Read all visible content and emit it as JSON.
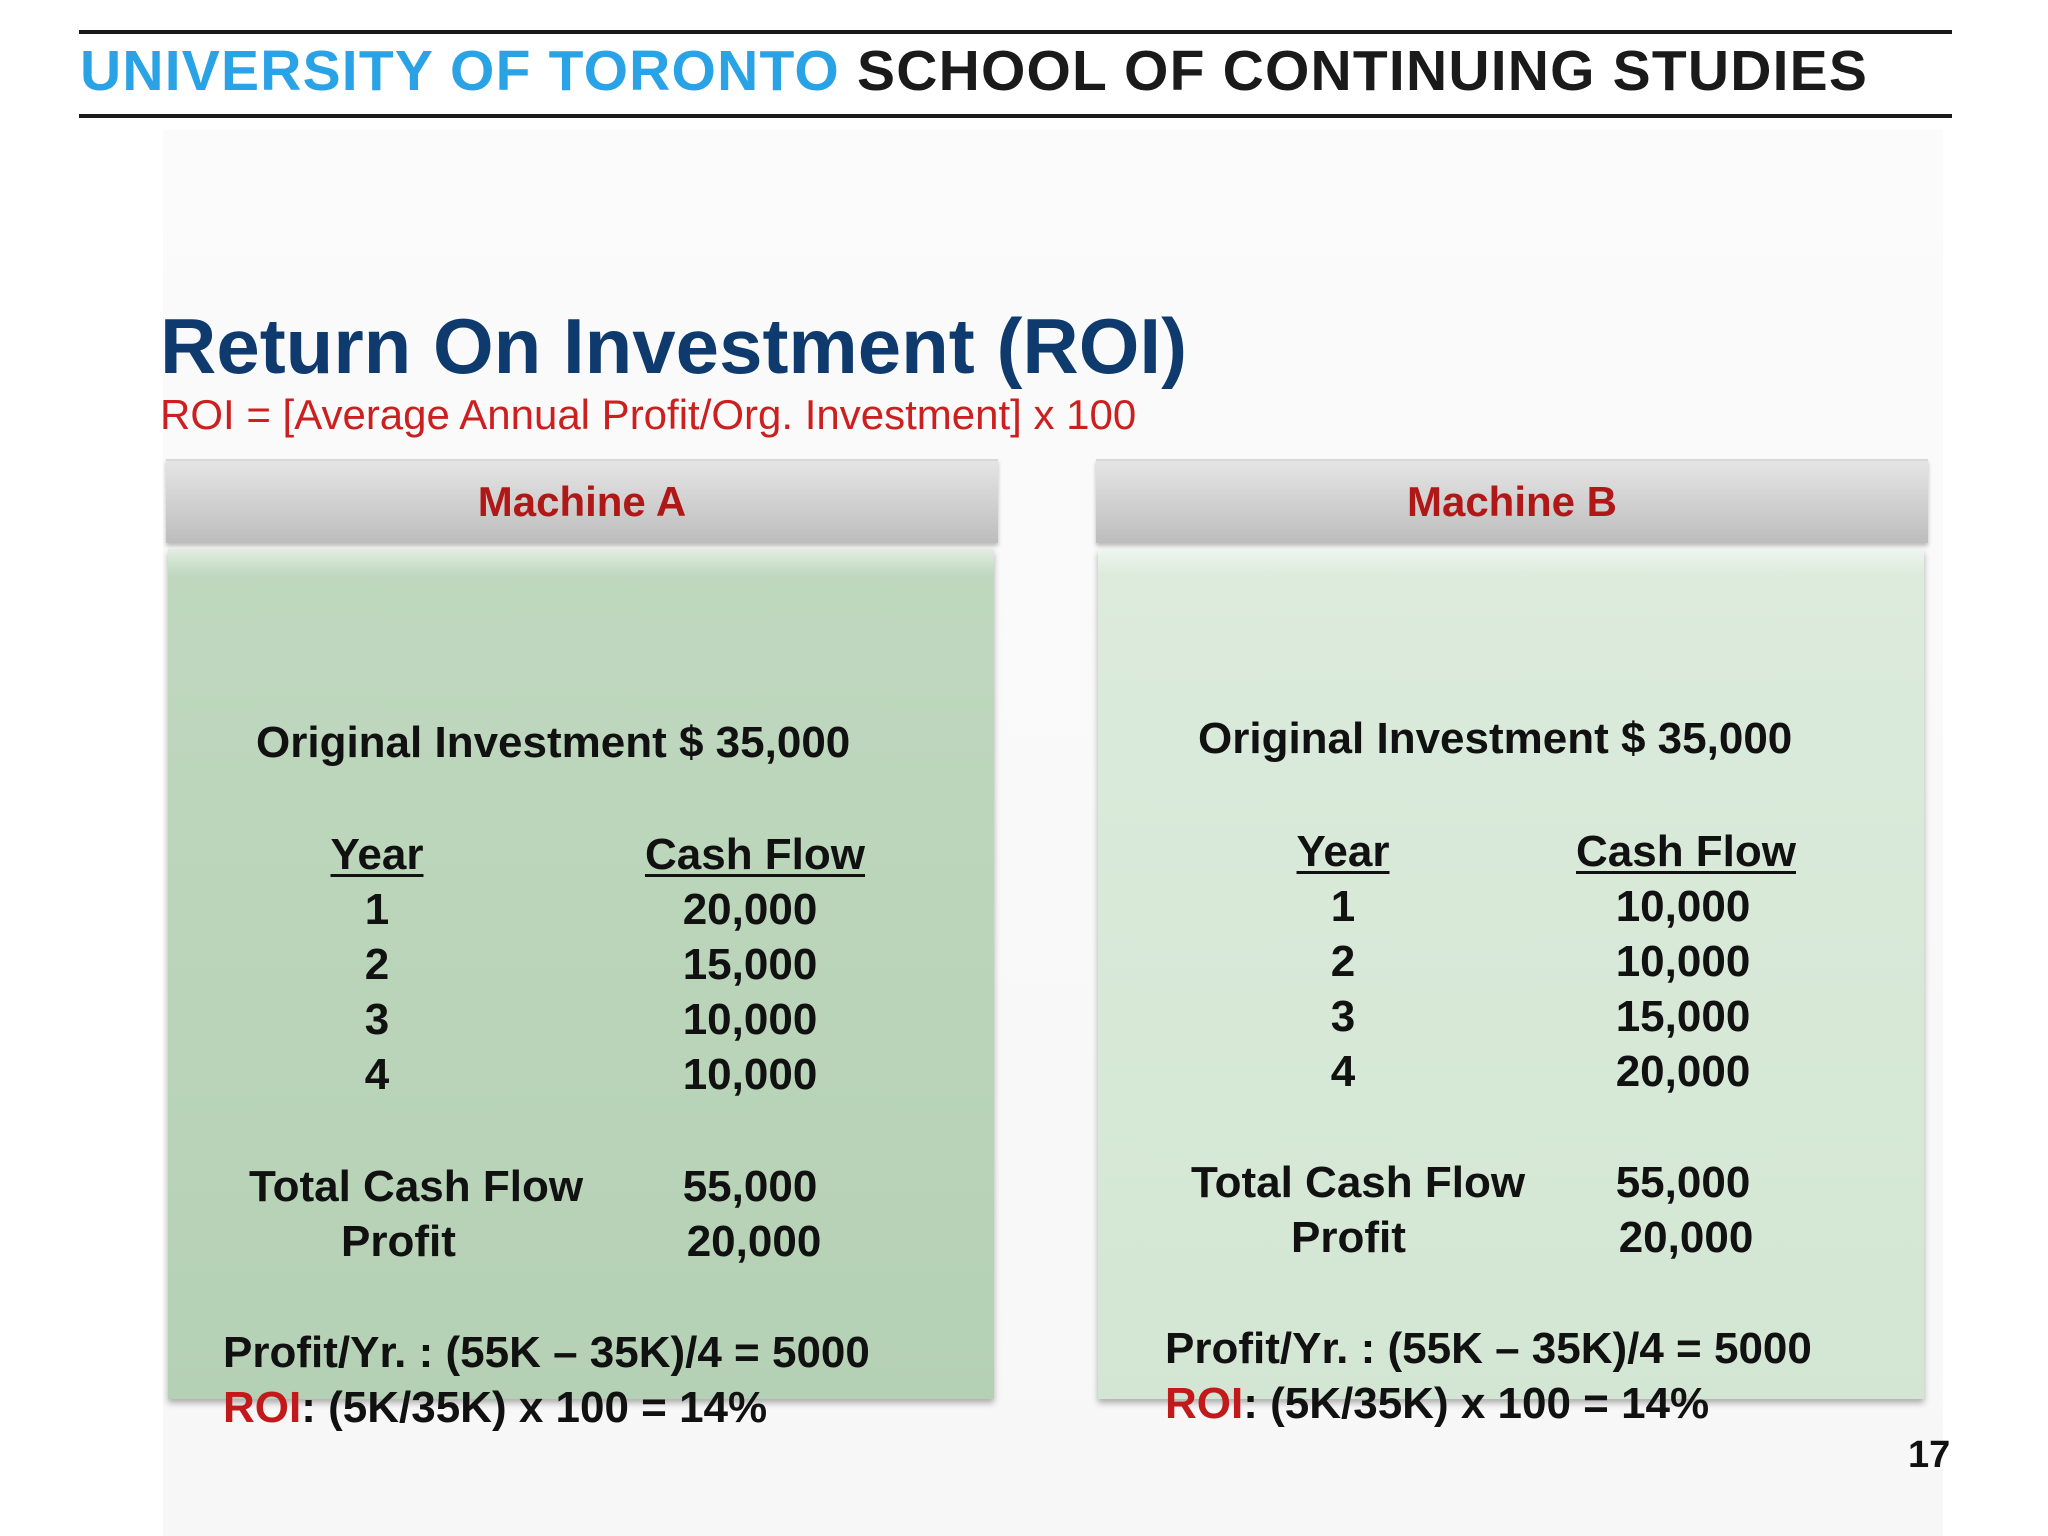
{
  "header": {
    "institution": "UNIVERSITY OF TORONTO",
    "school": "SCHOOL OF CONTINUING STUDIES"
  },
  "slide": {
    "title": "Return On Investment (ROI)",
    "formula": "ROI = [Average Annual Profit/Org. Investment] x 100",
    "page_number": "17"
  },
  "panels": [
    {
      "heading": "Machine A",
      "original_investment": "Original Investment $ 35,000",
      "year_header": "Year",
      "cash_flow_header": "Cash Flow",
      "rows": [
        {
          "year": "1",
          "cash_flow": "20,000"
        },
        {
          "year": "2",
          "cash_flow": "15,000"
        },
        {
          "year": "3",
          "cash_flow": "10,000"
        },
        {
          "year": "4",
          "cash_flow": "10,000"
        }
      ],
      "total_label": "Total Cash Flow",
      "total_value": "55,000",
      "profit_label": "Profit",
      "profit_value": "20,000",
      "profit_per_year": "Profit/Yr. : (55K – 35K)/4 = 5000",
      "roi_label": "ROI",
      "roi_calc": ": (5K/35K) x 100 = 14%"
    },
    {
      "heading": "Machine B",
      "original_investment": "Original Investment $ 35,000",
      "year_header": "Year",
      "cash_flow_header": "Cash Flow",
      "rows": [
        {
          "year": "1",
          "cash_flow": "10,000"
        },
        {
          "year": "2",
          "cash_flow": "10,000"
        },
        {
          "year": "3",
          "cash_flow": "15,000"
        },
        {
          "year": "4",
          "cash_flow": "20,000"
        }
      ],
      "total_label": "Total Cash Flow",
      "total_value": "55,000",
      "profit_label": "Profit",
      "profit_value": "20,000",
      "profit_per_year": "Profit/Yr. : (55K – 35K)/4 = 5000",
      "roi_label": "ROI",
      "roi_calc": ": (5K/35K) x 100 = 14%"
    }
  ]
}
